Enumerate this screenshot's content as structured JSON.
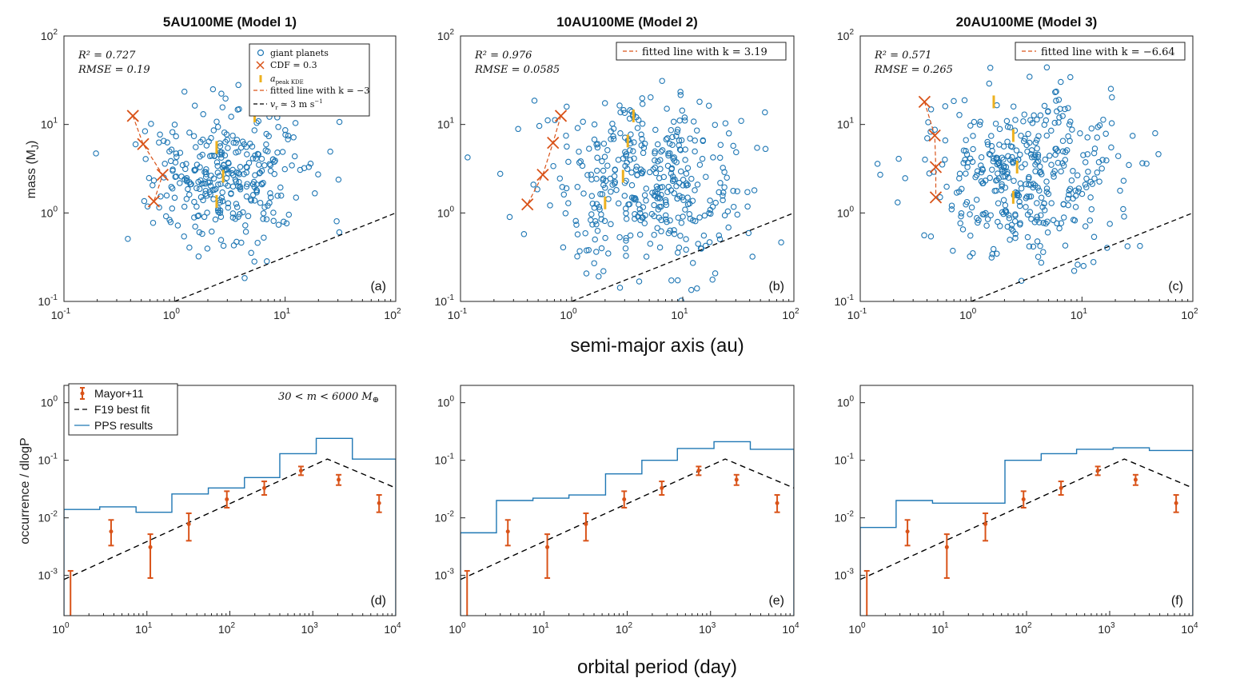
{
  "colors": {
    "blue": "#1f77b4",
    "orange": "#d95319",
    "gold": "#edb120",
    "black": "#000000"
  },
  "texts": {
    "xlabel_top": "semi-major axis (au)",
    "xlabel_bottom": "orbital period (day)",
    "ylabel_top": "mass (M",
    "ylabel_top_sub": "J",
    "ylabel_top_close": ")",
    "ylabel_bottom": "occurrence / dlogP",
    "mass_range": "30 < m < 6000 M",
    "mass_range_sub": "⊕"
  },
  "legend_top": {
    "giant": "giant planets",
    "cdf": "CDF = 0.3",
    "apeak": "a",
    "apeak_sub": "peak KDE",
    "fitted_m1": "fitted line with k = −3",
    "vr": "≃ 3 m s",
    "vr_v": "v",
    "vr_sub": "r",
    "vr_sup": "−1"
  },
  "legend_bottom": {
    "mayor": "Mayor+11",
    "f19": "F19 best fit",
    "pps": "PPS results"
  },
  "panels_top": [
    {
      "title": "5AU100ME (Model 1)",
      "label": "(a)",
      "r2": "R² = 0.727",
      "rmse": "RMSE = 0.19",
      "fit": "fitted line with k = −3",
      "k": -3
    },
    {
      "title": "10AU100ME (Model 2)",
      "label": "(b)",
      "r2": "R² = 0.976",
      "rmse": "RMSE = 0.0585",
      "fit": "fitted line with k = 3.19",
      "k": 3.19
    },
    {
      "title": "20AU100ME (Model 3)",
      "label": "(c)",
      "r2": "R² = 0.571",
      "rmse": "RMSE = 0.265",
      "fit": "fitted line with k = −6.64",
      "k": -6.64
    }
  ],
  "panels_bottom": [
    {
      "label": "(d)"
    },
    {
      "label": "(e)"
    },
    {
      "label": "(f)"
    }
  ],
  "chart_data": [
    {
      "type": "scatter",
      "panel": "a",
      "title": "5AU100ME (Model 1)",
      "xlabel": "semi-major axis (au)",
      "ylabel": "mass (MJ)",
      "xlim": [
        0.1,
        100
      ],
      "ylim": [
        0.1,
        100
      ],
      "xscale": "log",
      "yscale": "log",
      "xticks": [
        "10^-1",
        "10^0",
        "10^1",
        "10^2"
      ],
      "yticks": [
        "10^-1",
        "10^0",
        "10^1",
        "10^2"
      ],
      "scatter_seed": 11,
      "scatter_count": 330,
      "scatter_center": [
        2.8,
        2.6
      ],
      "scatter_spread": [
        0.36,
        0.42
      ],
      "cdf_points": [
        [
          0.42,
          12.5
        ],
        [
          0.52,
          6.0
        ],
        [
          0.78,
          2.7
        ],
        [
          0.65,
          1.35
        ]
      ],
      "kde_peaks": [
        [
          5.3,
          12.5
        ],
        [
          2.4,
          5.5
        ],
        [
          2.75,
          2.6
        ],
        [
          2.4,
          1.35
        ]
      ],
      "rv_line": {
        "x": [
          1,
          100
        ],
        "y": [
          0.1,
          1.0
        ]
      }
    },
    {
      "type": "scatter",
      "panel": "b",
      "title": "10AU100ME (Model 2)",
      "xlabel": "semi-major axis (au)",
      "ylabel": "mass (MJ)",
      "xlim": [
        0.1,
        100
      ],
      "ylim": [
        0.1,
        100
      ],
      "xscale": "log",
      "yscale": "log",
      "xticks": [
        "10^-1",
        "10^0",
        "10^1",
        "10^2"
      ],
      "yticks": [
        "10^-1",
        "10^0",
        "10^1",
        "10^2"
      ],
      "scatter_seed": 23,
      "scatter_count": 400,
      "scatter_center": [
        4.5,
        2.3
      ],
      "scatter_spread": [
        0.45,
        0.5
      ],
      "cdf_points": [
        [
          0.8,
          12.5
        ],
        [
          0.68,
          6.2
        ],
        [
          0.55,
          2.7
        ],
        [
          0.4,
          1.25
        ]
      ],
      "kde_peaks": [
        [
          3.6,
          12.5
        ],
        [
          3.2,
          6.5
        ],
        [
          2.9,
          2.6
        ],
        [
          2.0,
          1.3
        ]
      ],
      "rv_line": {
        "x": [
          1,
          100
        ],
        "y": [
          0.1,
          1.0
        ]
      }
    },
    {
      "type": "scatter",
      "panel": "c",
      "title": "20AU100ME (Model 3)",
      "xlabel": "semi-major axis (au)",
      "ylabel": "mass (MJ)",
      "xlim": [
        0.1,
        100
      ],
      "ylim": [
        0.1,
        100
      ],
      "xscale": "log",
      "yscale": "log",
      "xticks": [
        "10^-1",
        "10^0",
        "10^1",
        "10^2"
      ],
      "yticks": [
        "10^-1",
        "10^0",
        "10^1",
        "10^2"
      ],
      "scatter_seed": 37,
      "scatter_count": 400,
      "scatter_center": [
        3.0,
        2.5
      ],
      "scatter_spread": [
        0.45,
        0.5
      ],
      "cdf_points": [
        [
          0.38,
          18
        ],
        [
          0.47,
          7.5
        ],
        [
          0.48,
          3.3
        ],
        [
          0.48,
          1.5
        ]
      ],
      "kde_peaks": [
        [
          1.6,
          18
        ],
        [
          2.4,
          7.5
        ],
        [
          2.6,
          3.3
        ],
        [
          2.4,
          1.5
        ]
      ],
      "rv_line": {
        "x": [
          1,
          100
        ],
        "y": [
          0.1,
          1.0
        ]
      }
    },
    {
      "type": "line",
      "panel": "d",
      "xlabel": "orbital period (day)",
      "ylabel": "occurrence / dlogP",
      "xlim": [
        1,
        10000
      ],
      "ylim": [
        0.0002,
        2
      ],
      "xscale": "log",
      "yscale": "log",
      "xticks": [
        "10^0",
        "10^1",
        "10^2",
        "10^3",
        "10^4"
      ],
      "yticks": [
        "10^-3",
        "10^-2",
        "10^-1",
        "10^0"
      ],
      "mayor": {
        "x": [
          1.2,
          3.7,
          11,
          32,
          92,
          260,
          720,
          2050,
          6300
        ],
        "y": [
          0.0002,
          0.0058,
          0.0031,
          0.0078,
          0.021,
          0.033,
          0.066,
          0.046,
          0.018
        ],
        "lo": [
          0.0002,
          0.0033,
          0.0009,
          0.004,
          0.015,
          0.025,
          0.055,
          0.037,
          0.0125
        ],
        "hi": [
          0.0012,
          0.0092,
          0.0052,
          0.012,
          0.029,
          0.043,
          0.078,
          0.056,
          0.025
        ]
      },
      "f19": {
        "x": [
          1,
          1500,
          10000
        ],
        "y": [
          0.00085,
          0.105,
          0.033
        ]
      },
      "pps": {
        "edges": [
          1,
          2.7,
          7.4,
          20,
          55,
          150,
          400,
          1100,
          3000,
          10000
        ],
        "values": [
          0.014,
          0.0155,
          0.0125,
          0.026,
          0.033,
          0.05,
          0.13,
          0.24,
          0.105
        ]
      }
    },
    {
      "type": "line",
      "panel": "e",
      "xlabel": "orbital period (day)",
      "ylabel": "occurrence / dlogP",
      "xlim": [
        1,
        10000
      ],
      "ylim": [
        0.0002,
        2
      ],
      "xscale": "log",
      "yscale": "log",
      "xticks": [
        "10^0",
        "10^1",
        "10^2",
        "10^3",
        "10^4"
      ],
      "yticks": [
        "10^-3",
        "10^-2",
        "10^-1",
        "10^0"
      ],
      "mayor": {
        "x": [
          1.2,
          3.7,
          11,
          32,
          92,
          260,
          720,
          2050,
          6300
        ],
        "y": [
          0.0002,
          0.0058,
          0.0031,
          0.0078,
          0.021,
          0.033,
          0.066,
          0.046,
          0.018
        ],
        "lo": [
          0.0002,
          0.0033,
          0.0009,
          0.004,
          0.015,
          0.025,
          0.055,
          0.037,
          0.0125
        ],
        "hi": [
          0.0012,
          0.0092,
          0.0052,
          0.012,
          0.029,
          0.043,
          0.078,
          0.056,
          0.025
        ]
      },
      "f19": {
        "x": [
          1,
          1500,
          10000
        ],
        "y": [
          0.00085,
          0.105,
          0.033
        ]
      },
      "pps": {
        "edges": [
          1,
          2.7,
          7.4,
          20,
          55,
          150,
          400,
          1100,
          3000,
          10000
        ],
        "values": [
          0.0055,
          0.02,
          0.022,
          0.025,
          0.058,
          0.1,
          0.16,
          0.21,
          0.155
        ]
      }
    },
    {
      "type": "line",
      "panel": "f",
      "xlabel": "orbital period (day)",
      "ylabel": "occurrence / dlogP",
      "xlim": [
        1,
        10000
      ],
      "ylim": [
        0.0002,
        2
      ],
      "xscale": "log",
      "yscale": "log",
      "xticks": [
        "10^0",
        "10^1",
        "10^2",
        "10^3",
        "10^4"
      ],
      "yticks": [
        "10^-3",
        "10^-2",
        "10^-1",
        "10^0"
      ],
      "mayor": {
        "x": [
          1.2,
          3.7,
          11,
          32,
          92,
          260,
          720,
          2050,
          6300
        ],
        "y": [
          0.0002,
          0.0058,
          0.0031,
          0.0078,
          0.021,
          0.033,
          0.066,
          0.046,
          0.018
        ],
        "lo": [
          0.0002,
          0.0033,
          0.0009,
          0.004,
          0.015,
          0.025,
          0.055,
          0.037,
          0.0125
        ],
        "hi": [
          0.0012,
          0.0092,
          0.0052,
          0.012,
          0.029,
          0.043,
          0.078,
          0.056,
          0.025
        ]
      },
      "f19": {
        "x": [
          1,
          1500,
          10000
        ],
        "y": [
          0.00085,
          0.105,
          0.033
        ]
      },
      "pps": {
        "edges": [
          1,
          2.7,
          7.4,
          20,
          55,
          150,
          400,
          1100,
          3000,
          10000
        ],
        "values": [
          0.0068,
          0.02,
          0.018,
          0.018,
          0.1,
          0.13,
          0.155,
          0.165,
          0.148
        ]
      }
    }
  ]
}
